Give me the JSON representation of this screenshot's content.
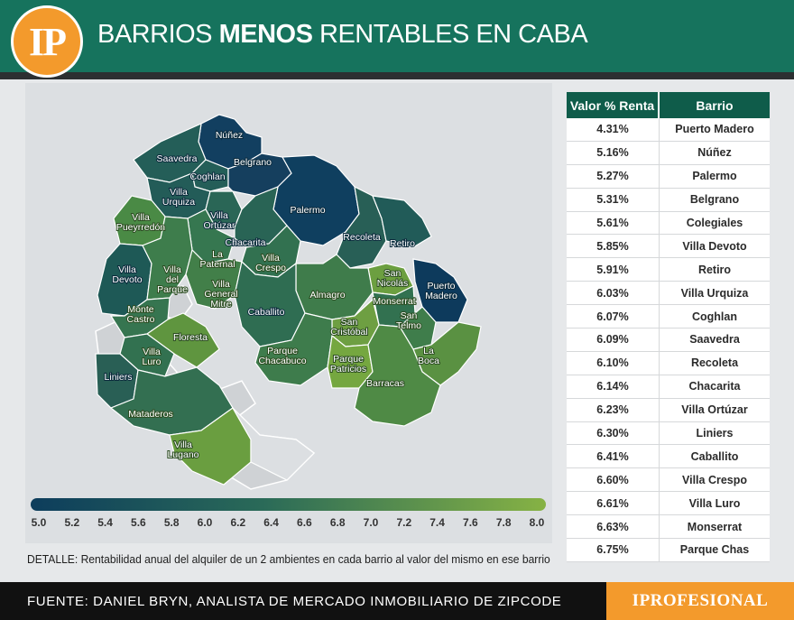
{
  "header": {
    "logo": "IP",
    "title_pre": "BARRIOS ",
    "title_bold": "MENOS",
    "title_post": " RENTABLES EN CABA"
  },
  "colors": {
    "header_bg": "#16735d",
    "accent_orange": "#f39a2c",
    "table_header": "#0f5c4a",
    "scale_low": "#0d3d5c",
    "scale_mid": "#2f6e52",
    "scale_high": "#7cab3f"
  },
  "chart_data": {
    "type": "table",
    "columns": [
      "Valor % Renta",
      "Barrio"
    ],
    "rows": [
      {
        "valor": "4.31%",
        "barrio": "Puerto Madero"
      },
      {
        "valor": "5.16%",
        "barrio": "Núñez"
      },
      {
        "valor": "5.27%",
        "barrio": "Palermo"
      },
      {
        "valor": "5.31%",
        "barrio": "Belgrano"
      },
      {
        "valor": "5.61%",
        "barrio": "Colegiales"
      },
      {
        "valor": "5.85%",
        "barrio": "Villa Devoto"
      },
      {
        "valor": "5.91%",
        "barrio": "Retiro"
      },
      {
        "valor": "6.03%",
        "barrio": "Villa Urquiza"
      },
      {
        "valor": "6.07%",
        "barrio": "Coghlan"
      },
      {
        "valor": "6.09%",
        "barrio": "Saavedra"
      },
      {
        "valor": "6.10%",
        "barrio": "Recoleta"
      },
      {
        "valor": "6.14%",
        "barrio": "Chacarita"
      },
      {
        "valor": "6.23%",
        "barrio": "Villa Ortúzar"
      },
      {
        "valor": "6.30%",
        "barrio": "Liniers"
      },
      {
        "valor": "6.41%",
        "barrio": "Caballito"
      },
      {
        "valor": "6.60%",
        "barrio": "Villa Crespo"
      },
      {
        "valor": "6.61%",
        "barrio": "Villa Luro"
      },
      {
        "valor": "6.63%",
        "barrio": "Monserrat"
      },
      {
        "valor": "6.75%",
        "barrio": "Parque Chas"
      }
    ],
    "scale": {
      "min": 5.0,
      "max": 8.0,
      "ticks": [
        "5.0",
        "5.2",
        "5.4",
        "5.6",
        "5.8",
        "6.0",
        "6.2",
        "6.4",
        "6.6",
        "6.8",
        "7.0",
        "7.2",
        "7.4",
        "7.6",
        "7.8",
        "8.0"
      ]
    },
    "map_labels": [
      {
        "name": "Núñez",
        "lines": [
          "Núñez"
        ],
        "value": 5.16
      },
      {
        "name": "Saavedra",
        "lines": [
          "Saavedra"
        ],
        "value": 6.09
      },
      {
        "name": "Coghlan",
        "lines": [
          "Coghlan"
        ],
        "value": 6.07
      },
      {
        "name": "Belgrano",
        "lines": [
          "Belgrano"
        ],
        "value": 5.31
      },
      {
        "name": "Villa Urquiza",
        "lines": [
          "Villa",
          "Urquiza"
        ],
        "value": 6.03
      },
      {
        "name": "Palermo",
        "lines": [
          "Palermo"
        ],
        "value": 5.27
      },
      {
        "name": "Villa Pueyrredón",
        "lines": [
          "Villa",
          "Pueyrredón"
        ],
        "value": 7.4
      },
      {
        "name": "Villa Ortúzar",
        "lines": [
          "Villa",
          "Ortúzar"
        ],
        "value": 6.23
      },
      {
        "name": "Chacarita",
        "lines": [
          "Chacarita"
        ],
        "value": 6.14
      },
      {
        "name": "Recoleta",
        "lines": [
          "Recoleta"
        ],
        "value": 6.1
      },
      {
        "name": "Retiro",
        "lines": [
          "Retiro"
        ],
        "value": 5.91
      },
      {
        "name": "La Paternal",
        "lines": [
          "La",
          "Paternal"
        ],
        "value": 6.8
      },
      {
        "name": "Villa Crespo",
        "lines": [
          "Villa",
          "Crespo"
        ],
        "value": 6.6
      },
      {
        "name": "Villa Devoto",
        "lines": [
          "Villa",
          "Devoto"
        ],
        "value": 5.85
      },
      {
        "name": "Villa del Parque",
        "lines": [
          "Villa",
          "del",
          "Parque"
        ],
        "value": 6.9
      },
      {
        "name": "Villa General Mitre",
        "lines": [
          "Villa",
          "General",
          "Mitre"
        ],
        "value": 7.1
      },
      {
        "name": "San Nicolás",
        "lines": [
          "San",
          "Nicolás"
        ],
        "value": 7.6
      },
      {
        "name": "Puerto Madero",
        "lines": [
          "Puerto",
          "Madero"
        ],
        "value": 4.31
      },
      {
        "name": "Almagro",
        "lines": [
          "Almagro"
        ],
        "value": 7.0
      },
      {
        "name": "Monserrat",
        "lines": [
          "Monserrat"
        ],
        "value": 6.63
      },
      {
        "name": "Caballito",
        "lines": [
          "Caballito"
        ],
        "value": 6.41
      },
      {
        "name": "Monte Castro",
        "lines": [
          "Monte",
          "Castro"
        ],
        "value": 6.7
      },
      {
        "name": "Floresta",
        "lines": [
          "Floresta"
        ],
        "value": 7.4
      },
      {
        "name": "San Telmo",
        "lines": [
          "San",
          "Telmo"
        ],
        "value": 7.0
      },
      {
        "name": "San Cristóbal",
        "lines": [
          "San",
          "Cristóbal"
        ],
        "value": 7.5
      },
      {
        "name": "Villa Luro",
        "lines": [
          "Villa",
          "Luro"
        ],
        "value": 6.61
      },
      {
        "name": "Parque Chacabuco",
        "lines": [
          "Parque",
          "Chacabuco"
        ],
        "value": 6.9
      },
      {
        "name": "Parque Patricios",
        "lines": [
          "Parque",
          "Patricios"
        ],
        "value": 7.7
      },
      {
        "name": "La Boca",
        "lines": [
          "La",
          "Boca"
        ],
        "value": 7.3
      },
      {
        "name": "Liniers",
        "lines": [
          "Liniers"
        ],
        "value": 6.3
      },
      {
        "name": "Barracas",
        "lines": [
          "Barracas"
        ],
        "value": 7.2
      },
      {
        "name": "Mataderos",
        "lines": [
          "Mataderos"
        ],
        "value": 6.7
      },
      {
        "name": "Villa Lugano",
        "lines": [
          "Villa",
          "Lugano"
        ],
        "value": 7.5
      }
    ]
  },
  "detail": {
    "label": "DETALLE:",
    "text": " Rentabilidad anual del alquiler de un 2 ambientes en cada barrio al valor del mismo en ese barrio"
  },
  "footer": {
    "source": "FUENTE: DANIEL BRYN, ANALISTA DE MERCADO INMOBILIARIO DE ZIPCODE",
    "brand": "IPROFESIONAL"
  }
}
